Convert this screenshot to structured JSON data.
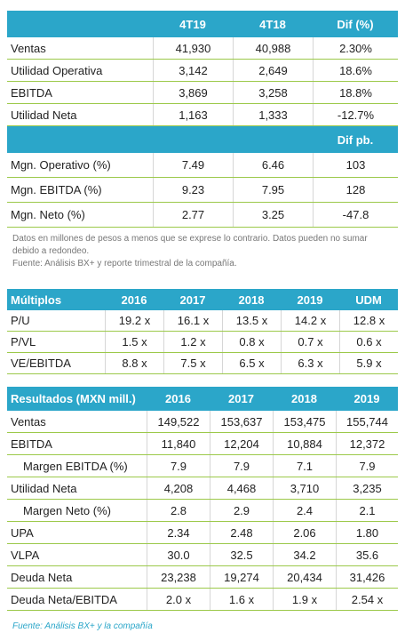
{
  "summary": {
    "columns": [
      "4T19",
      "4T18",
      "Dif (%)"
    ],
    "rows": [
      [
        "Ventas",
        "41,930",
        "40,988",
        "2.30%"
      ],
      [
        "Utilidad Operativa",
        "3,142",
        "2,649",
        "18.6%"
      ],
      [
        "EBITDA",
        "3,869",
        "3,258",
        "18.8%"
      ],
      [
        "Utilidad Neta",
        "1,163",
        "1,333",
        "-12.7%"
      ]
    ],
    "margin_column": "Dif pb.",
    "margin_rows": [
      [
        "Mgn. Operativo (%)",
        "7.49",
        "6.46",
        "103"
      ],
      [
        "Mgn. EBITDA (%)",
        "9.23",
        "7.95",
        "128"
      ],
      [
        "Mgn. Neto (%)",
        "2.77",
        "3.25",
        "-47.8"
      ]
    ],
    "note": "Datos en millones de pesos a menos que se exprese lo contrario. Datos pueden no sumar debido a redondeo.",
    "source": "Fuente: Análisis BX+ y reporte trimestral de la compañía."
  },
  "multiples": {
    "title": "Múltiplos",
    "columns": [
      "2016",
      "2017",
      "2018",
      "2019",
      "UDM"
    ],
    "rows": [
      [
        "P/U",
        "19.2 x",
        "16.1 x",
        "13.5 x",
        "14.2 x",
        "12.8 x"
      ],
      [
        "P/VL",
        "1.5 x",
        "1.2 x",
        "0.8 x",
        "0.7 x",
        "0.6 x"
      ],
      [
        "VE/EBITDA",
        "8.8 x",
        "7.5 x",
        "6.5 x",
        "6.3 x",
        "5.9 x"
      ]
    ]
  },
  "results": {
    "title": "Resultados (MXN mill.)",
    "columns": [
      "2016",
      "2017",
      "2018",
      "2019"
    ],
    "rows": [
      [
        "Ventas",
        "149,522",
        "153,637",
        "153,475",
        "155,744"
      ],
      [
        "EBITDA",
        "11,840",
        "12,204",
        "10,884",
        "12,372"
      ],
      [
        "Margen EBITDA (%)",
        "7.9",
        "7.9",
        "7.1",
        "7.9"
      ],
      [
        "Utilidad Neta",
        "4,208",
        "4,468",
        "3,710",
        "3,235"
      ],
      [
        "Margen Neto (%)",
        "2.8",
        "2.9",
        "2.4",
        "2.1"
      ],
      [
        "UPA",
        "2.34",
        "2.48",
        "2.06",
        "1.80"
      ],
      [
        "VLPA",
        "30.0",
        "32.5",
        "34.2",
        "35.6"
      ],
      [
        "Deuda Neta",
        "23,238",
        "19,274",
        "20,434",
        "31,426"
      ],
      [
        "Deuda Neta/EBITDA",
        "2.0 x",
        "1.6 x",
        "1.9 x",
        "2.54 x"
      ]
    ],
    "source": "Fuente: Análisis BX+ y la compañía"
  }
}
